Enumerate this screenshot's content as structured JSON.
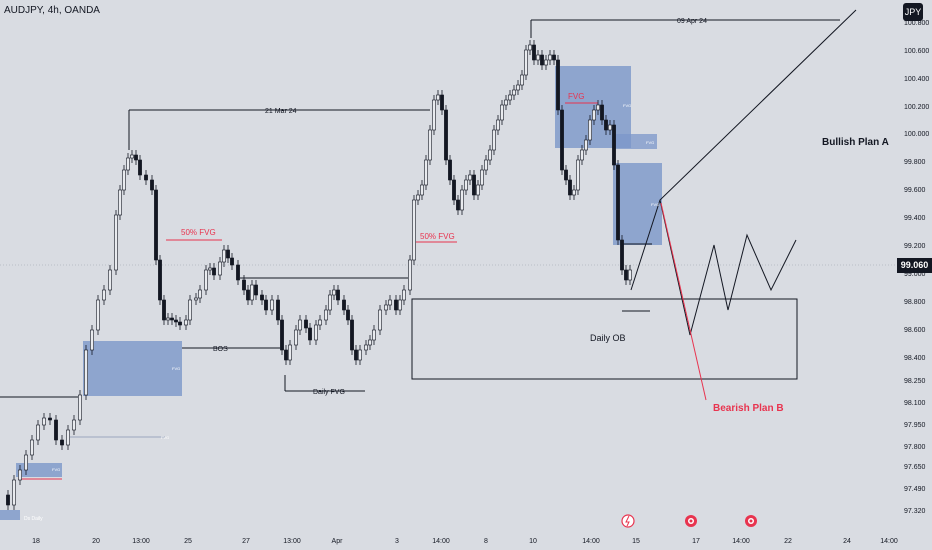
{
  "header": {
    "symbol_title": "AUDJPY, 4h, OANDA"
  },
  "currency_button": {
    "label": "JPY"
  },
  "last_price": "99.060",
  "price_axis": [
    "100.800",
    "100.600",
    "100.400",
    "100.200",
    "100.000",
    "99.800",
    "99.600",
    "99.400",
    "99.200",
    "99.000",
    "98.800",
    "98.600",
    "98.400",
    "98.250",
    "98.100",
    "97.950",
    "97.800",
    "97.650",
    "97.490",
    "97.320"
  ],
  "time_axis": [
    "18",
    "20",
    "13:00",
    "25",
    "27",
    "13:00",
    "Apr",
    "3",
    "14:00",
    "8",
    "10",
    "14:00",
    "15",
    "17",
    "14:00",
    "22",
    "24",
    "14:00"
  ],
  "annotations": {
    "date_09apr": "09 Apr 24",
    "date_21mar": "21 Mar 24",
    "fvg50_left": "50% FVG",
    "fvg50_right": "50% FVG",
    "fvg_top": "FVG",
    "bos": "BOS",
    "daily_fvg": "Daily FVG",
    "daily_ob": "Daily OB",
    "bullish_plan": "Bullish Plan A",
    "bearish_plan": "Bearish Plan B",
    "fvg_small": "FVG",
    "ds_label": "Ds Daily"
  },
  "colors": {
    "background": "#d9dce2",
    "candle": "#131722",
    "fvg_box": "#7b97c9",
    "bearish": "#e8344f",
    "label_dark": "#131722"
  }
}
